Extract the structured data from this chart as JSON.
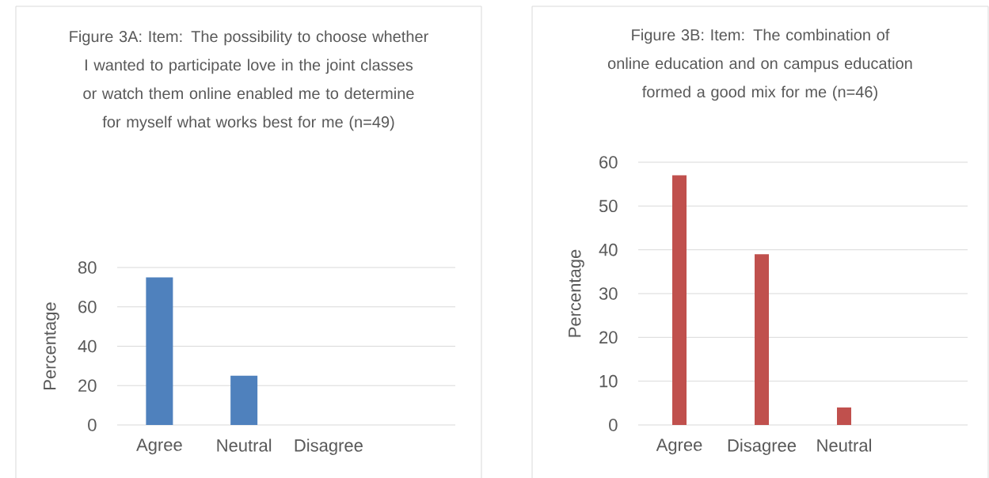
{
  "chart_data": [
    {
      "type": "bar",
      "title": "Figure 3A: Item: The possibility to choose whether I wanted to participate love in the joint classes or watch them online enabled me to determine for myself what works best for me (n=49)",
      "ylabel": "Percentage",
      "categories": [
        "Agree",
        "Neutral",
        "Disagree",
        null
      ],
      "values": [
        75,
        25,
        0,
        null
      ],
      "color": "#4f81bd",
      "ylim": [
        0,
        80
      ],
      "yticks": [
        0,
        20,
        40,
        60,
        80
      ],
      "grid": "y"
    },
    {
      "type": "bar",
      "title": "Figure 3B: Item: The combination of online education and on campus education formed a good mix for me (n=46)",
      "ylabel": "Percentage",
      "categories": [
        "Agree",
        "Disagree",
        "Neutral",
        null
      ],
      "values": [
        57,
        39,
        4,
        null
      ],
      "color": "#c0504d",
      "ylim": [
        0,
        60
      ],
      "yticks": [
        0,
        10,
        20,
        30,
        40,
        50,
        60
      ],
      "grid": "y"
    }
  ]
}
